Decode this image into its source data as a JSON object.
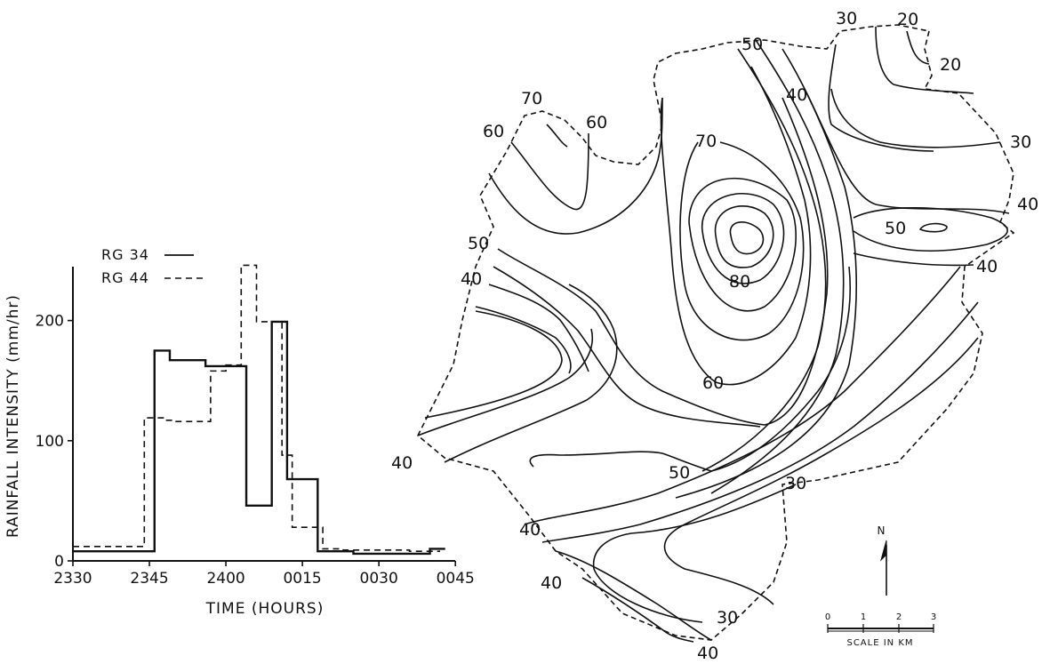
{
  "chart_data": [
    {
      "type": "step",
      "xlabel": "TIME (HOURS)",
      "ylabel": "RAINFALL INTENSITY (mm/hr)",
      "ylim": [
        0,
        250
      ],
      "xlim_labels": [
        "2330",
        "2345",
        "2400",
        "0015",
        "0030",
        "0045"
      ],
      "x_tick_minutes": [
        0,
        15,
        30,
        45,
        60,
        75
      ],
      "y_ticks": [
        0,
        100,
        200
      ],
      "legend": [
        "RG 34",
        "RG 44"
      ],
      "series": [
        {
          "name": "RG 34",
          "style": "solid",
          "steps": [
            {
              "start": 0,
              "end": 16,
              "value": 8
            },
            {
              "start": 16,
              "end": 19,
              "value": 175
            },
            {
              "start": 19,
              "end": 26,
              "value": 167
            },
            {
              "start": 26,
              "end": 34,
              "value": 162
            },
            {
              "start": 34,
              "end": 39,
              "value": 46
            },
            {
              "start": 39,
              "end": 42,
              "value": 199
            },
            {
              "start": 42,
              "end": 48,
              "value": 68
            },
            {
              "start": 48,
              "end": 55,
              "value": 8
            },
            {
              "start": 55,
              "end": 70,
              "value": 6
            },
            {
              "start": 70,
              "end": 73,
              "value": 10
            }
          ]
        },
        {
          "name": "RG 44",
          "style": "dashed",
          "steps": [
            {
              "start": 0,
              "end": 14,
              "value": 12
            },
            {
              "start": 14,
              "end": 18,
              "value": 119
            },
            {
              "start": 18,
              "end": 20,
              "value": 117
            },
            {
              "start": 20,
              "end": 27,
              "value": 116
            },
            {
              "start": 27,
              "end": 30,
              "value": 158
            },
            {
              "start": 30,
              "end": 33,
              "value": 163
            },
            {
              "start": 33,
              "end": 36,
              "value": 246
            },
            {
              "start": 36,
              "end": 41,
              "value": 199
            },
            {
              "start": 41,
              "end": 43,
              "value": 88
            },
            {
              "start": 43,
              "end": 49,
              "value": 28
            },
            {
              "start": 49,
              "end": 53,
              "value": 10
            },
            {
              "start": 53,
              "end": 66,
              "value": 9
            },
            {
              "start": 66,
              "end": 72,
              "value": 8
            }
          ]
        }
      ]
    },
    {
      "type": "contour-map",
      "contour_labels": [
        "70",
        "60",
        "60",
        "50",
        "40",
        "40",
        "70",
        "80",
        "60",
        "50",
        "50",
        "40",
        "30",
        "40",
        "30",
        "20",
        "20",
        "30",
        "40",
        "50",
        "40",
        "30",
        "40",
        "40",
        "30",
        "40"
      ],
      "north_label": "N",
      "scale": {
        "ticks": [
          "0",
          "1",
          "2",
          "3"
        ],
        "label": "SCALE IN KM"
      }
    }
  ]
}
